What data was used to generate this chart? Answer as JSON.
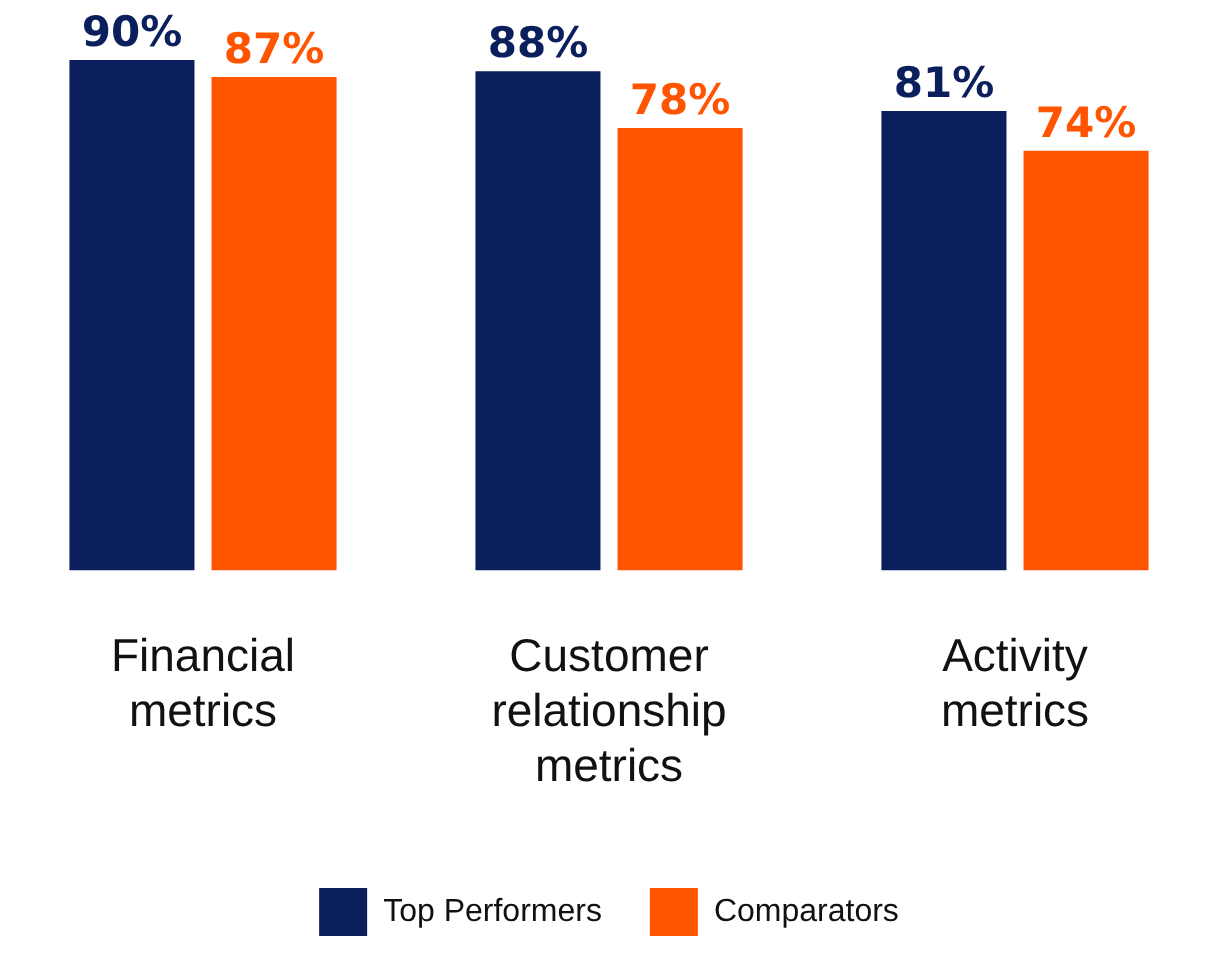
{
  "chart_data": {
    "type": "bar",
    "categories": [
      "Financial metrics",
      "Customer relationship metrics",
      "Activity metrics"
    ],
    "series": [
      {
        "name": "Top Performers",
        "color": "#0a1f5c",
        "values": [
          90,
          88,
          81
        ],
        "value_labels": [
          "90%",
          "88%",
          "81%"
        ]
      },
      {
        "name": "Comparators",
        "color": "#ff5500",
        "values": [
          87,
          78,
          74
        ],
        "value_labels": [
          "87%",
          "78%",
          "74%"
        ]
      }
    ],
    "grid": false,
    "legend": "bottom"
  }
}
